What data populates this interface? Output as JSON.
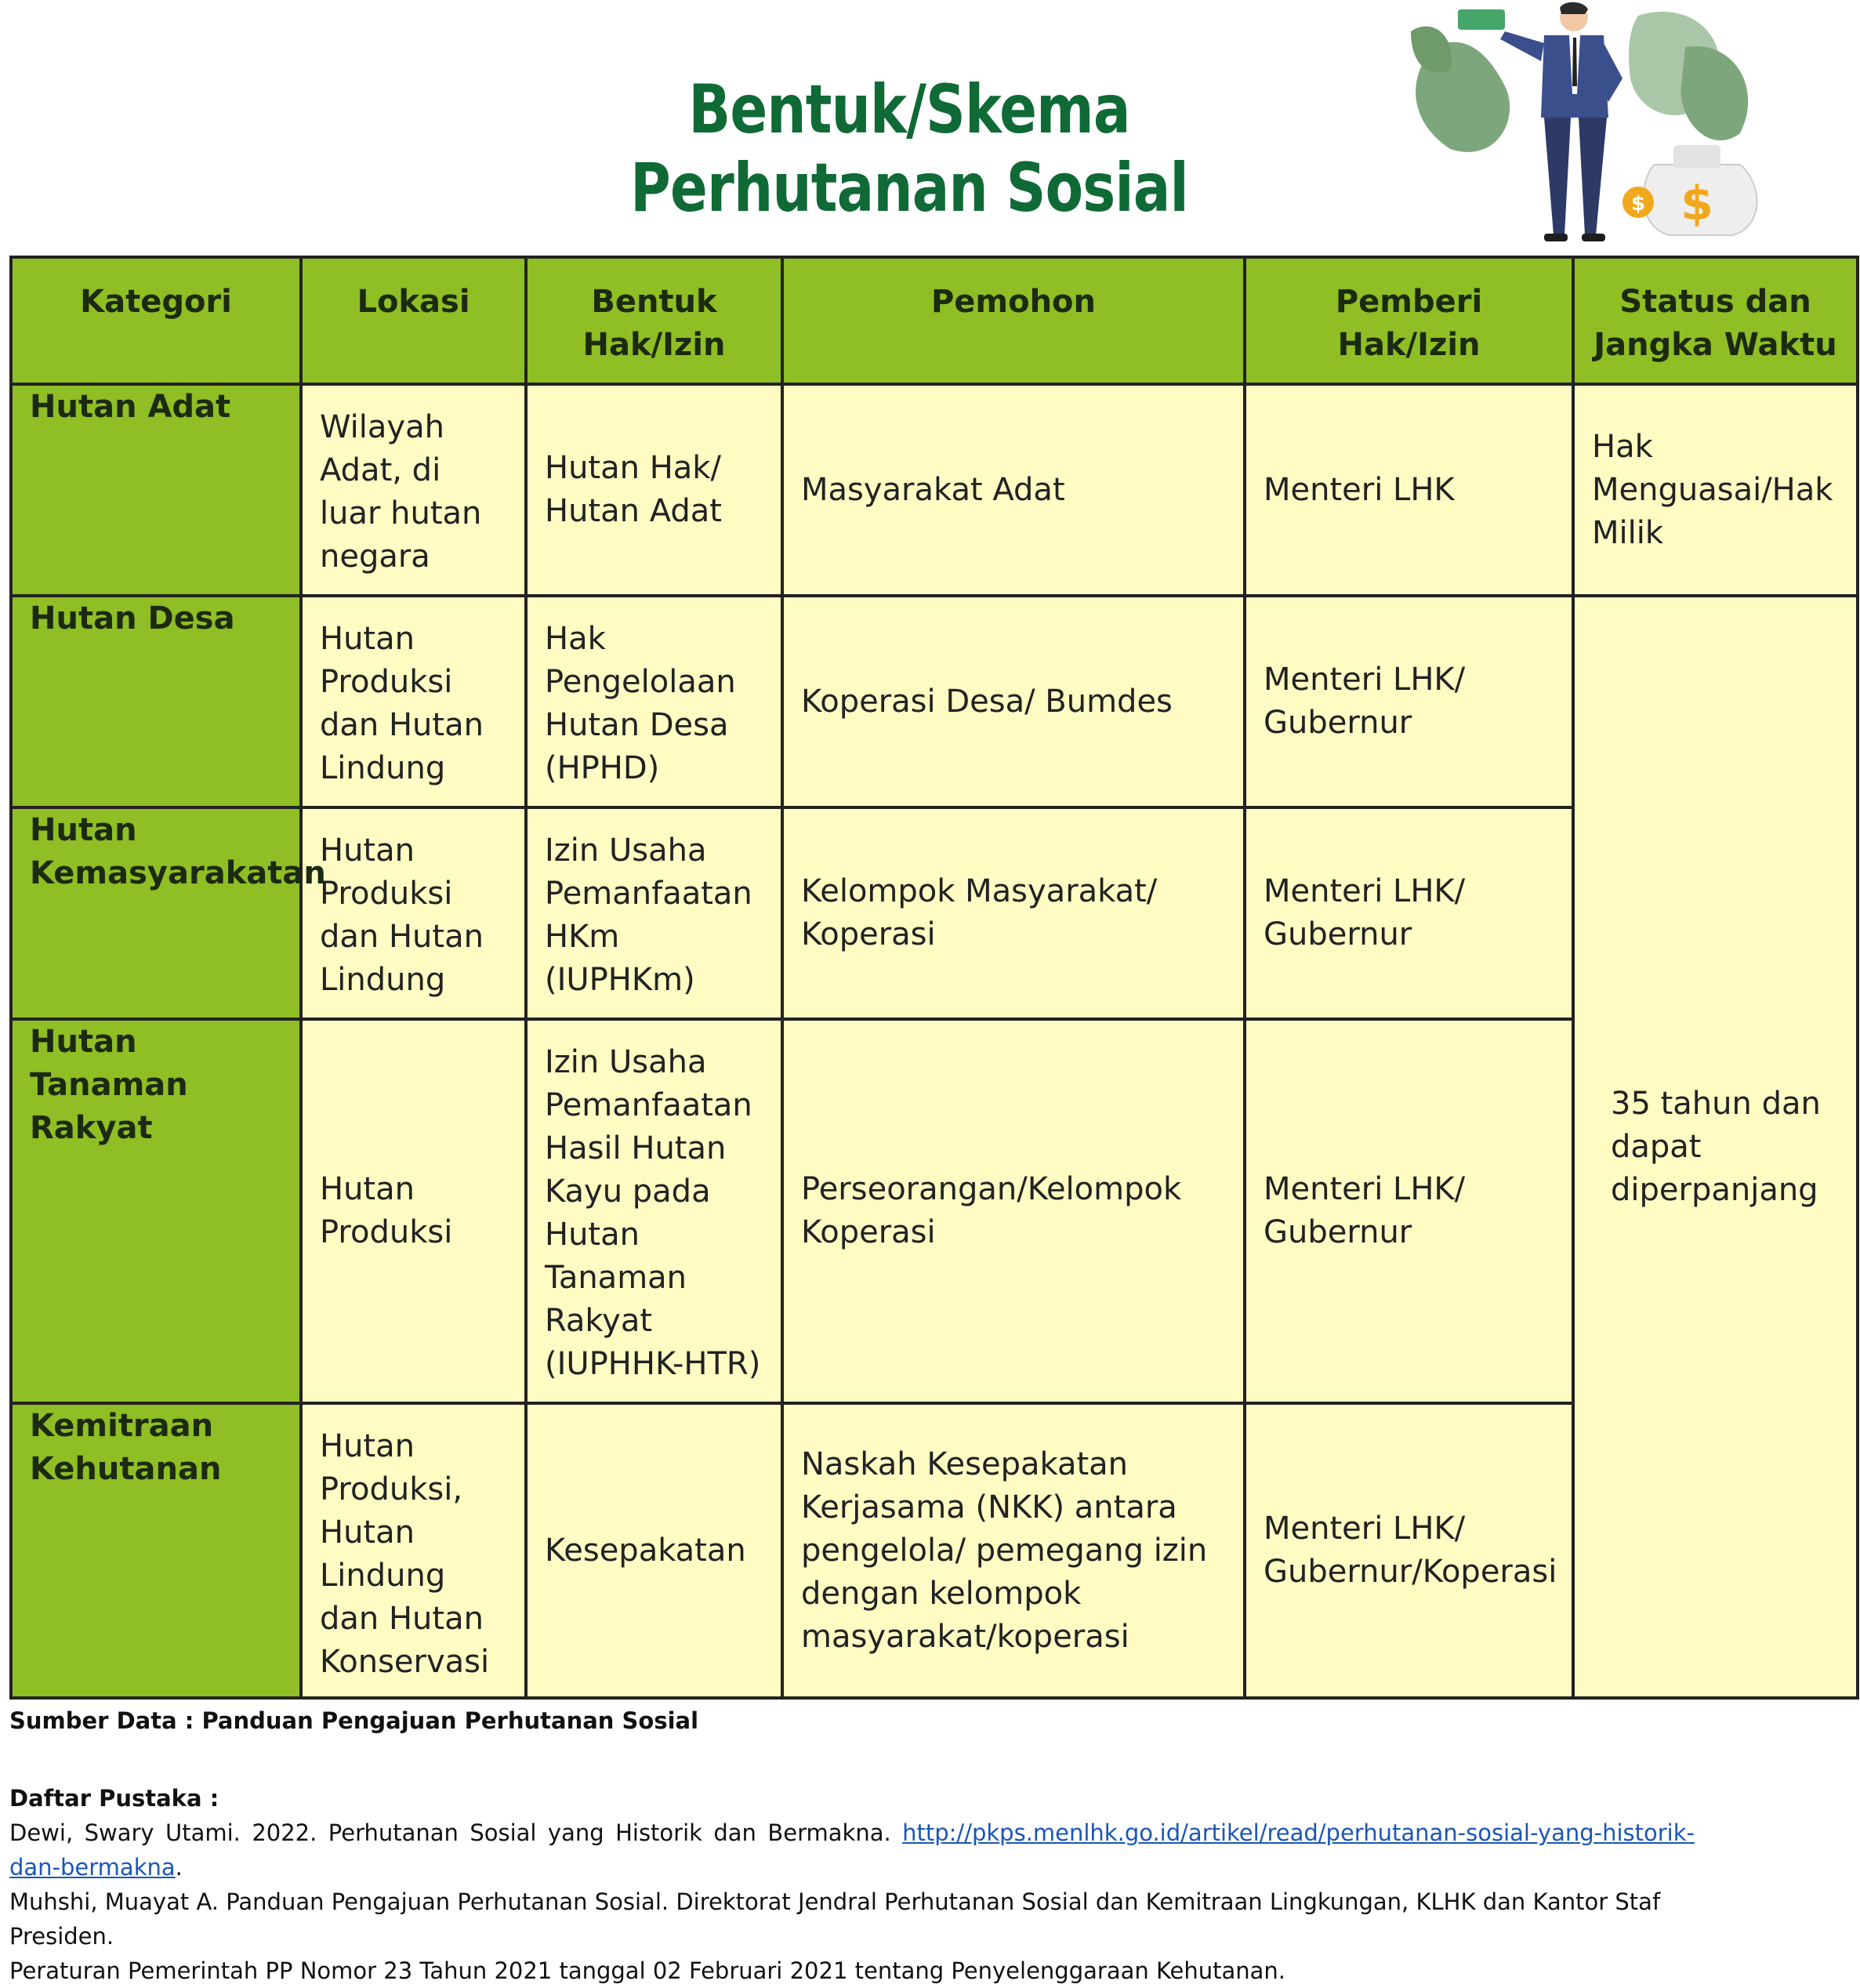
{
  "title": "Bentuk/Skema Perhutanan Sosial",
  "illustration": {
    "icons": [
      "businessman-icon",
      "money-bag-icon",
      "coin-icon",
      "leaf-icon"
    ],
    "colors": {
      "suit": "#3b4f8c",
      "leaf": "#7ea67c",
      "coin": "#f2a81d"
    }
  },
  "table": {
    "headers": [
      "Kategori",
      "Lokasi",
      "Bentuk Hak/Izin",
      "Pemohon",
      "Pemberi Hak/Izin",
      "Status dan Jangka Waktu"
    ],
    "rows": [
      {
        "kategori": "Hutan Adat",
        "lokasi": "Wilayah Adat, di luar hutan negara",
        "bentuk": "Hutan Hak/ Hutan Adat",
        "pemohon": "Masyarakat Adat",
        "pemberi": "Menteri LHK",
        "status": "Hak Menguasai/Hak Milik"
      },
      {
        "kategori": "Hutan Desa",
        "lokasi": "Hutan Produksi dan Hutan Lindung",
        "bentuk": "Hak Pengelolaan Hutan Desa (HPHD)",
        "pemohon": "Koperasi Desa/ Bumdes",
        "pemberi": "Menteri LHK/ Gubernur",
        "status": "35 tahun dan dapat diperpanjang"
      },
      {
        "kategori": "Hutan Kemasyarakatan",
        "lokasi": "Hutan Produksi dan Hutan Lindung",
        "bentuk": "Izin Usaha Pemanfaatan HKm (IUPHKm)",
        "pemohon": "Kelompok Masyarakat/ Koperasi",
        "pemberi": "Menteri LHK/ Gubernur"
      },
      {
        "kategori": "Hutan Tanaman Rakyat",
        "lokasi": "Hutan Produksi",
        "bentuk": "Izin Usaha Pemanfaatan Hasil Hutan Kayu pada Hutan Tanaman Rakyat (IUPHHK-HTR)",
        "pemohon": "Perseorangan/Kelompok Koperasi",
        "pemberi": "Menteri LHK/ Gubernur"
      },
      {
        "kategori": "Kemitraan Kehutanan",
        "lokasi": "Hutan Produksi, Hutan Lindung dan Hutan Konservasi",
        "bentuk": "Kesepakatan",
        "pemohon": "Naskah Kesepakatan Kerjasama (NKK) antara pengelola/ pemegang izin dengan kelompok masyarakat/koperasi",
        "pemberi": "Menteri LHK/ Gubernur/Koperasi"
      }
    ],
    "colors": {
      "header": "#8fbe25",
      "cell": "#fefbc3",
      "border": "#222222"
    }
  },
  "source": "Sumber Data : Panduan Pengajuan Perhutanan Sosial",
  "references": {
    "heading": "Daftar Pustaka :",
    "items": [
      {
        "text": "Dewi, Swary Utami. 2022. Perhutanan Sosial yang Historik dan Bermakna. ",
        "link": "http://pkps.menlhk.go.id/artikel/read/perhutanan-sosial-yang-historik-dan-bermakna",
        "after": "."
      },
      {
        "text": "Muhshi, Muayat A. Panduan Pengajuan Perhutanan Sosial. Direktorat Jendral Perhutanan Sosial dan Kemitraan Lingkungan, KLHK dan Kantor Staf Presiden."
      },
      {
        "text": "Peraturan Pemerintah PP Nomor 23 Tahun 2021 tanggal 02 Februari 2021 tentang Penyelenggaraan Kehutanan."
      }
    ]
  }
}
